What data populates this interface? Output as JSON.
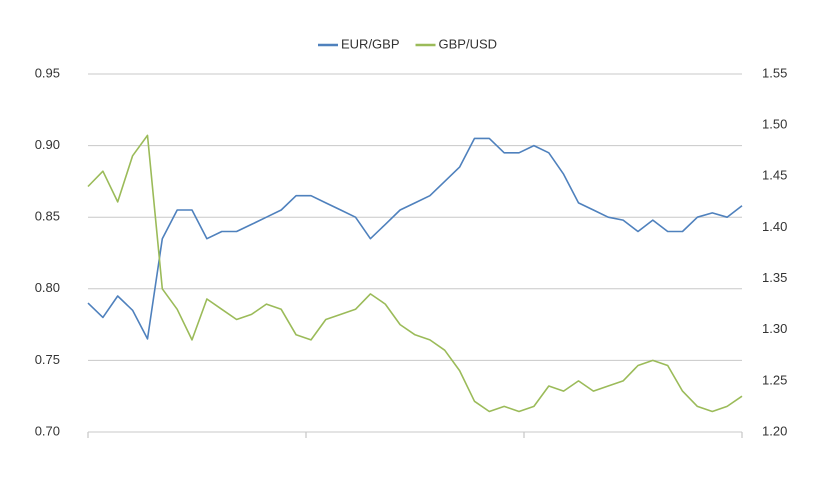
{
  "chart_data": {
    "type": "line",
    "series": [
      {
        "name": "EUR/GBP",
        "color": "#4f81bd",
        "axis": "y",
        "values": [
          0.79,
          0.78,
          0.795,
          0.785,
          0.765,
          0.835,
          0.855,
          0.855,
          0.835,
          0.84,
          0.84,
          0.845,
          0.85,
          0.855,
          0.865,
          0.865,
          0.86,
          0.855,
          0.85,
          0.835,
          0.845,
          0.855,
          0.86,
          0.865,
          0.875,
          0.885,
          0.905,
          0.905,
          0.895,
          0.895,
          0.9,
          0.895,
          0.88,
          0.86,
          0.855,
          0.85,
          0.848,
          0.84,
          0.848,
          0.84,
          0.84,
          0.85,
          0.853,
          0.85,
          0.858
        ]
      },
      {
        "name": "GBP/USD",
        "color": "#9bbb59",
        "axis": "y2",
        "values": [
          1.44,
          1.455,
          1.425,
          1.47,
          1.49,
          1.34,
          1.32,
          1.29,
          1.33,
          1.32,
          1.31,
          1.315,
          1.325,
          1.32,
          1.295,
          1.29,
          1.31,
          1.315,
          1.32,
          1.335,
          1.325,
          1.305,
          1.295,
          1.29,
          1.28,
          1.26,
          1.23,
          1.22,
          1.225,
          1.22,
          1.225,
          1.245,
          1.24,
          1.25,
          1.24,
          1.245,
          1.25,
          1.265,
          1.27,
          1.265,
          1.24,
          1.225,
          1.22,
          1.225,
          1.235
        ]
      }
    ],
    "ylim": [
      0.7,
      0.95
    ],
    "yticks": [
      {
        "value": 0.7,
        "label": "0.70"
      },
      0.75,
      {
        "value": 0.8,
        "label": "0.80"
      },
      0.85,
      {
        "value": 0.9,
        "label": "0.90"
      },
      0.95
    ],
    "y2lim": [
      1.2,
      1.55
    ],
    "y2ticks": [
      {
        "value": 1.2,
        "label": "1.20"
      },
      1.25,
      {
        "value": 1.3,
        "label": "1.30"
      },
      1.35,
      {
        "value": 1.4,
        "label": "1.40"
      },
      1.45,
      {
        "value": 1.5,
        "label": "1.50"
      },
      1.55
    ],
    "grid": true,
    "legend": "top"
  }
}
